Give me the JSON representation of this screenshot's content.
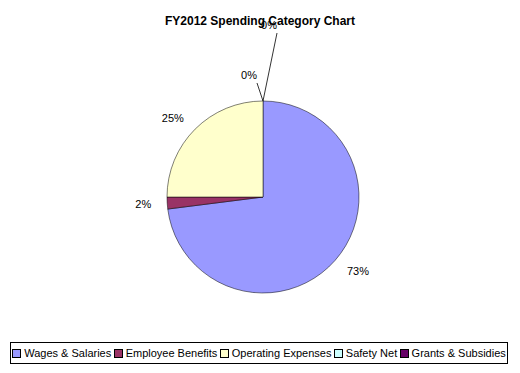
{
  "chart_data": {
    "type": "pie",
    "title": "FY2012 Spending Category Chart",
    "categories": [
      "Wages & Salaries",
      "Employee Benefits",
      "Operating Expenses",
      "Safety Net",
      "Grants & Subsidies"
    ],
    "values": [
      73,
      2,
      25,
      0,
      0
    ],
    "value_labels": [
      "73%",
      "2%",
      "25%",
      "0%",
      "0%"
    ],
    "colors": [
      "#9999ff",
      "#993366",
      "#ffffcc",
      "#ccffff",
      "#660066"
    ],
    "data_labels": true,
    "legend": "bottom"
  }
}
